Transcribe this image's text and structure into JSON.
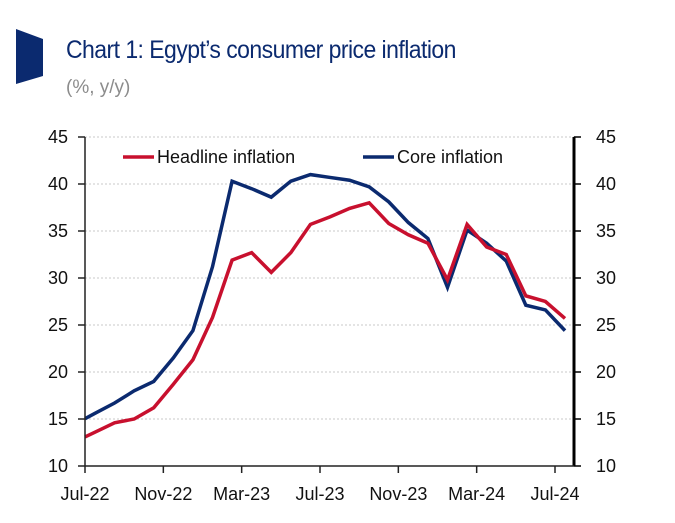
{
  "header": {
    "title": "Chart 1: Egypt’s consumer price inflation",
    "subtitle": "(%, y/y)",
    "accent_color": "#0b2a6f"
  },
  "chart_data": {
    "type": "line",
    "title": "Chart 1: Egypt’s consumer price inflation",
    "subtitle": "(%, y/y)",
    "xlabel": "",
    "ylabel": "%, y/y",
    "ylim": [
      10,
      45
    ],
    "y_ticks": [
      10,
      15,
      20,
      25,
      30,
      35,
      40,
      45
    ],
    "y_tick_labels": [
      "10",
      "15",
      "20",
      "25",
      "30",
      "35",
      "40",
      "45"
    ],
    "secondary_ylim": [
      10,
      45
    ],
    "grid": "horizontal dotted",
    "legend_position": "top-center",
    "x": [
      "Jul-22",
      "Aug-22",
      "Sep-22",
      "Oct-22",
      "Nov-22",
      "Dec-22",
      "Jan-23",
      "Feb-23",
      "Mar-23",
      "Apr-23",
      "May-23",
      "Jun-23",
      "Jul-23",
      "Aug-23",
      "Sep-23",
      "Oct-23",
      "Nov-23",
      "Dec-23",
      "Jan-24",
      "Feb-24",
      "Mar-24",
      "Apr-24",
      "May-24",
      "Jun-24",
      "Jul-24"
    ],
    "x_tick_labels": [
      "Jul-22",
      "Nov-22",
      "Mar-23",
      "Jul-23",
      "Nov-23",
      "Mar-24",
      "Jul-24"
    ],
    "series": [
      {
        "name": "Headline inflation",
        "color": "#c8102e",
        "values": [
          13.6,
          14.6,
          15.0,
          16.2,
          18.7,
          21.3,
          25.8,
          31.9,
          32.7,
          30.6,
          32.7,
          35.7,
          36.5,
          37.4,
          38.0,
          35.8,
          34.6,
          33.7,
          29.8,
          35.7,
          33.3,
          32.5,
          28.1,
          27.5,
          25.7
        ]
      },
      {
        "name": "Core inflation",
        "color": "#0b2a6f",
        "values": [
          15.6,
          16.7,
          18.0,
          19.0,
          21.5,
          24.4,
          31.2,
          40.3,
          39.5,
          38.6,
          40.3,
          41.0,
          40.7,
          40.4,
          39.7,
          38.1,
          35.9,
          34.2,
          29.0,
          35.1,
          33.7,
          31.8,
          27.1,
          26.6,
          24.4
        ]
      }
    ]
  }
}
